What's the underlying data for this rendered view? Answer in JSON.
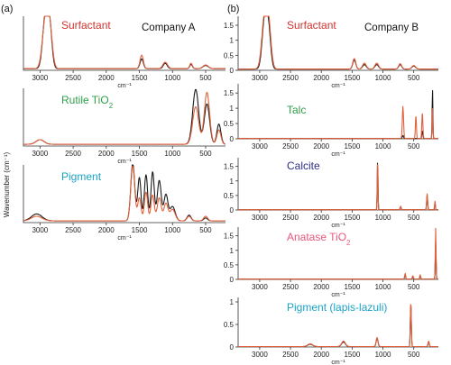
{
  "figure": {
    "panel_a_label": "(a)",
    "panel_b_label": "(b)",
    "company_a": "Company A",
    "company_b": "Company B",
    "y_axis_label": "Wavenumber (cm⁻¹)",
    "x_unit": "cm⁻¹"
  },
  "colors": {
    "black_trace": "#1a1a1a",
    "orange_trace": "#e2613c",
    "red_label": "#d2322d",
    "green_label": "#2e9e4a",
    "cyan_label": "#1ba3c6",
    "navy_label": "#2b2f86",
    "pink_label": "#e8587d"
  },
  "chart_data": [
    {
      "type": "line",
      "panel": "a",
      "label": "Surfactant",
      "label_color": "#d2322d",
      "x_ticks": [
        3000,
        2500,
        2000,
        1500,
        1000,
        500
      ],
      "yticks": [],
      "xlim": [
        3250,
        200
      ],
      "ylim": [
        0,
        1.0
      ],
      "series": [
        {
          "color": "#1a1a1a",
          "peaks": [
            [
              2920,
              0.95,
              40
            ],
            [
              2855,
              0.75,
              35
            ],
            [
              1465,
              0.18,
              25
            ],
            [
              1110,
              0.1,
              30
            ],
            [
              720,
              0.08,
              20
            ],
            [
              500,
              0.06,
              40
            ]
          ],
          "baseline": 0.03
        },
        {
          "color": "#e2613c",
          "peaks": [
            [
              2920,
              0.85,
              45
            ],
            [
              2855,
              0.7,
              40
            ],
            [
              1465,
              0.25,
              25
            ],
            [
              1110,
              0.12,
              35
            ],
            [
              720,
              0.1,
              20
            ],
            [
              500,
              0.07,
              40
            ]
          ],
          "baseline": 0.03
        }
      ]
    },
    {
      "type": "line",
      "panel": "a",
      "label": "Rutile TiO",
      "label_sub": "2",
      "label_color": "#2e9e4a",
      "x_ticks": [
        3000,
        2500,
        2000,
        1500,
        1000,
        500
      ],
      "yticks": [],
      "xlim": [
        3250,
        200
      ],
      "ylim": [
        0,
        1.0
      ],
      "series": [
        {
          "color": "#1a1a1a",
          "peaks": [
            [
              3000,
              0.08,
              60
            ],
            [
              650,
              0.95,
              45
            ],
            [
              480,
              0.7,
              40
            ],
            [
              300,
              0.35,
              30
            ]
          ],
          "baseline": 0.03
        },
        {
          "color": "#e2613c",
          "peaks": [
            [
              3000,
              0.08,
              60
            ],
            [
              650,
              0.65,
              45
            ],
            [
              480,
              0.9,
              40
            ],
            [
              300,
              0.25,
              30
            ]
          ],
          "baseline": 0.03
        }
      ]
    },
    {
      "type": "line",
      "panel": "a",
      "label": "Pigment",
      "label_color": "#1ba3c6",
      "x_ticks": [
        3000,
        2500,
        2000,
        1500,
        1000,
        500
      ],
      "yticks": [],
      "xlim": [
        3250,
        200
      ],
      "ylim": [
        0,
        1.0
      ],
      "series": [
        {
          "color": "#1a1a1a",
          "peaks": [
            [
              3050,
              0.12,
              80
            ],
            [
              1600,
              1.0,
              30
            ],
            [
              1500,
              0.75,
              25
            ],
            [
              1400,
              0.8,
              25
            ],
            [
              1300,
              0.85,
              25
            ],
            [
              1200,
              0.7,
              30
            ],
            [
              1100,
              0.45,
              30
            ],
            [
              1000,
              0.25,
              40
            ],
            [
              750,
              0.1,
              30
            ],
            [
              500,
              0.05,
              30
            ]
          ],
          "baseline": 0.03
        },
        {
          "color": "#e2613c",
          "peaks": [
            [
              3050,
              0.08,
              80
            ],
            [
              1600,
              0.95,
              30
            ],
            [
              1500,
              0.4,
              25
            ],
            [
              1400,
              0.5,
              25
            ],
            [
              1300,
              0.45,
              25
            ],
            [
              1200,
              0.4,
              30
            ],
            [
              1100,
              0.3,
              30
            ],
            [
              1000,
              0.2,
              40
            ],
            [
              750,
              0.08,
              30
            ],
            [
              500,
              0.08,
              30
            ]
          ],
          "baseline": 0.03
        }
      ]
    },
    {
      "type": "line",
      "panel": "b",
      "label": "Surfactant",
      "label_color": "#d2322d",
      "x_ticks": [
        3000,
        2500,
        2000,
        1500,
        1000,
        500
      ],
      "yticks": [
        0,
        0.5,
        1,
        1.5
      ],
      "xlim": [
        3350,
        100
      ],
      "ylim": [
        0,
        1.8
      ],
      "series": [
        {
          "color": "#1a1a1a",
          "peaks": [
            [
              2920,
              1.65,
              40
            ],
            [
              2855,
              1.2,
              35
            ],
            [
              1465,
              0.3,
              25
            ],
            [
              1300,
              0.15,
              30
            ],
            [
              1100,
              0.15,
              30
            ],
            [
              720,
              0.15,
              25
            ],
            [
              500,
              0.1,
              30
            ]
          ],
          "baseline": 0.04
        },
        {
          "color": "#e2613c",
          "peaks": [
            [
              2920,
              1.7,
              45
            ],
            [
              2855,
              1.3,
              40
            ],
            [
              1465,
              0.35,
              25
            ],
            [
              1300,
              0.2,
              30
            ],
            [
              1100,
              0.2,
              30
            ],
            [
              720,
              0.18,
              25
            ],
            [
              500,
              0.12,
              30
            ]
          ],
          "baseline": 0.04
        }
      ]
    },
    {
      "type": "line",
      "panel": "b",
      "label": "Talc",
      "label_color": "#2e9e4a",
      "x_ticks": [
        3000,
        2500,
        2000,
        1500,
        1000,
        500
      ],
      "yticks": [
        0,
        0.5,
        1,
        1.5
      ],
      "xlim": [
        3350,
        100
      ],
      "ylim": [
        0,
        1.8
      ],
      "series": [
        {
          "color": "#1a1a1a",
          "peaks": [
            [
              675,
              0.1,
              10
            ],
            [
              360,
              0.25,
              8
            ],
            [
              195,
              1.6,
              6
            ]
          ],
          "baseline": 0.01
        },
        {
          "color": "#e2613c",
          "peaks": [
            [
              675,
              1.05,
              10
            ],
            [
              465,
              0.75,
              8
            ],
            [
              360,
              0.85,
              8
            ],
            [
              195,
              1.0,
              6
            ]
          ],
          "baseline": 0.01
        }
      ]
    },
    {
      "type": "line",
      "panel": "b",
      "label": "Calcite",
      "label_color": "#2b2f86",
      "x_ticks": [
        3000,
        2500,
        2000,
        1500,
        1000,
        500
      ],
      "yticks": [
        0,
        0.5,
        1,
        1.5
      ],
      "xlim": [
        3350,
        100
      ],
      "ylim": [
        0,
        1.8
      ],
      "series": [
        {
          "color": "#1a1a1a",
          "peaks": [
            [
              1086,
              1.65,
              6
            ],
            [
              712,
              0.1,
              8
            ],
            [
              282,
              0.5,
              8
            ],
            [
              155,
              0.25,
              6
            ]
          ],
          "baseline": 0.01
        },
        {
          "color": "#e2613c",
          "peaks": [
            [
              1086,
              1.6,
              6
            ],
            [
              712,
              0.12,
              8
            ],
            [
              282,
              0.55,
              8
            ],
            [
              155,
              0.3,
              6
            ]
          ],
          "baseline": 0.01
        }
      ]
    },
    {
      "type": "line",
      "panel": "b",
      "label": "Anatase TiO",
      "label_sub": "2",
      "label_color": "#e8587d",
      "x_ticks": [
        3000,
        2500,
        2000,
        1500,
        1000,
        500
      ],
      "yticks": [
        0,
        0.5,
        1,
        1.5
      ],
      "xlim": [
        3350,
        100
      ],
      "ylim": [
        0,
        1.8
      ],
      "series": [
        {
          "color": "#1a1a1a",
          "peaks": [
            [
              639,
              0.15,
              8
            ],
            [
              515,
              0.08,
              8
            ],
            [
              395,
              0.1,
              8
            ],
            [
              144,
              1.3,
              6
            ]
          ],
          "baseline": 0.01
        },
        {
          "color": "#e2613c",
          "peaks": [
            [
              639,
              0.2,
              8
            ],
            [
              515,
              0.12,
              8
            ],
            [
              395,
              0.15,
              8
            ],
            [
              144,
              1.75,
              6
            ]
          ],
          "baseline": 0.01
        }
      ]
    },
    {
      "type": "line",
      "panel": "b",
      "label": "Pigment (lapis-lazuli)",
      "label_color": "#1ba3c6",
      "x_ticks": [
        3000,
        2500,
        2000,
        1500,
        1000,
        500
      ],
      "yticks": [
        0,
        0.5,
        1
      ],
      "xlim": [
        3350,
        100
      ],
      "ylim": [
        0,
        1.1
      ],
      "series": [
        {
          "color": "#1a1a1a",
          "peaks": [
            [
              2180,
              0.05,
              40
            ],
            [
              1640,
              0.1,
              30
            ],
            [
              1095,
              0.18,
              15
            ],
            [
              547,
              0.95,
              8
            ],
            [
              258,
              0.1,
              10
            ]
          ],
          "baseline": 0.01
        },
        {
          "color": "#e2613c",
          "peaks": [
            [
              2180,
              0.06,
              40
            ],
            [
              1640,
              0.12,
              30
            ],
            [
              1095,
              0.2,
              15
            ],
            [
              547,
              1.0,
              8
            ],
            [
              258,
              0.12,
              10
            ]
          ],
          "baseline": 0.01
        }
      ]
    }
  ]
}
